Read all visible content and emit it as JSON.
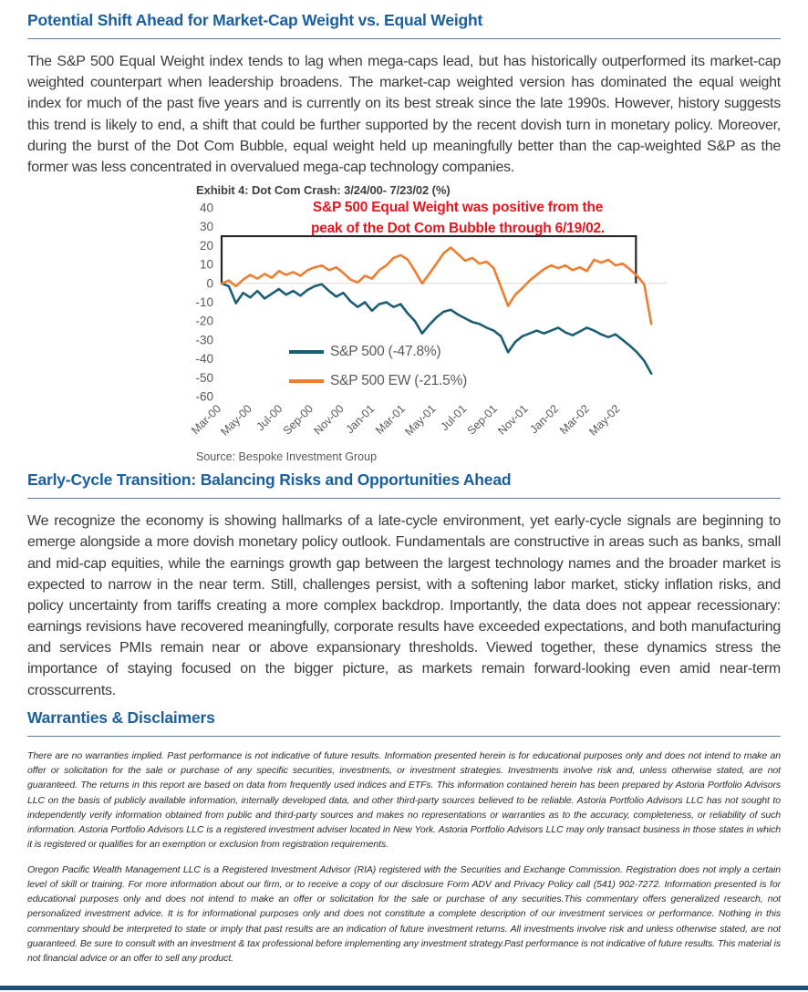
{
  "colors": {
    "heading": "#1a5fa0",
    "red": "#e8141e",
    "bar": "#1f4e79",
    "sp500_line": "#1b5e74",
    "sp500ew_line": "#ed7d31"
  },
  "document": {
    "section1": {
      "title": "Potential Shift Ahead for Market-Cap Weight vs. Equal Weight",
      "body": "The S&P 500 Equal Weight index tends to lag when mega-caps lead, but has historically outperformed its market-cap weighted counterpart when leadership broadens. The market-cap weighted version has dominated the equal weight index for much of the past five years and is currently on its best streak since the late 1990s. However, history suggests this trend is likely to end, a shift that could be further supported by the recent dovish turn in monetary policy. Moreover, during the burst of the Dot Com Bubble, equal weight held up meaningfully better than the cap-weighted S&P as the former was less concentrated in overvalued mega-cap technology companies."
    },
    "section2": {
      "title": "Early-Cycle Transition: Balancing Risks and Opportunities Ahead",
      "body": "We recognize the economy is showing hallmarks of a late-cycle environment, yet early-cycle signals are beginning to emerge alongside a more dovish monetary policy outlook. Fundamentals are constructive in areas such as banks, small and mid-cap equities, while the earnings growth gap between the largest technology names and the broader market is expected to narrow in the near term. Still, challenges persist, with a softening labor market, sticky inflation risks, and policy uncertainty from tariffs creating a more complex backdrop. Importantly, the data does not appear recessionary: earnings revisions have recovered meaningfully, corporate results have exceeded expectations, and both manufacturing and services PMIs remain near or above expansionary thresholds. Viewed together, these dynamics stress the importance of staying focused on the bigger picture, as markets remain forward-looking even amid near-term crosscurrents."
    },
    "disclaimers": {
      "title": "Warranties & Disclaimers",
      "para1": "There are no warranties implied. Past performance is not indicative of future results. Information presented herein is for educational purposes only and does not intend to make an offer or solicitation for the sale or purchase of any specific securities, investments, or investment strategies. Investments involve risk and, unless otherwise stated, are not guaranteed. The returns in this report are based on data from frequently used indices and ETFs. This information contained herein has been prepared by Astoria Portfolio Advisors LLC on the basis of publicly available information, internally developed data, and other third-party sources believed to be reliable. Astoria Portfolio Advisors LLC has not sought to independently verify information obtained from public and third-party sources and makes no representations or warranties as to the accuracy, completeness, or reliability of such information.  Astoria Portfolio Advisors LLC is a registered investment adviser located in New York. Astoria Portfolio Advisors LLC may only transact business in those states in which it is registered or qualifies for an exemption or exclusion from registration requirements.",
      "para2": "Oregon Pacific Wealth Management LLC is a Registered Investment Advisor (RIA) registered with the Securities and Exchange Commission. Registration does not imply a certain level of skill or training. For more information about our firm, or to receive a copy of our disclosure Form ADV and Privacy Policy call (541) 902-7272. Information presented is for educational purposes only and does not intend to make an offer or solicitation for the sale or purchase of any securities.This commentary offers generalized research, not personalized investment advice. It is for informational purposes only and does not constitute a complete description of our investment services or performance. Nothing in this commentary should be interpreted to state or imply that past results are an indication of future investment returns. All investments involve risk and unless otherwise stated, are not guaranteed. Be sure to consult with an investment & tax professional before implementing any investment strategy.Past performance is not indicative of future results. This material is not financial advice or an offer to sell any product."
    }
  },
  "chart_data": {
    "type": "line",
    "title": "Exhibit 4: Dot Com Crash: 3/24/00- 7/23/02 (%)",
    "annotation_lines": [
      "S&P 500 Equal Weight was positive from the",
      "peak of the Dot Com Bubble through 6/19/02."
    ],
    "source": "Source: Bespoke Investment Group",
    "ylabel": "%",
    "ylim": [
      -60,
      40
    ],
    "y_ticks": [
      40,
      30,
      20,
      10,
      0,
      -10,
      -20,
      -30,
      -40,
      -50,
      -60
    ],
    "x_unit": "months since 3/24/00",
    "xlim": [
      0,
      29
    ],
    "x_ticks": [
      "Mar-00",
      "May-00",
      "Jul-00",
      "Sep-00",
      "Nov-00",
      "Jan-01",
      "Mar-01",
      "May-01",
      "Jul-01",
      "Sep-01",
      "Nov-01",
      "Jan-02",
      "Mar-02",
      "May-02"
    ],
    "x_tick_positions": [
      0,
      2,
      4,
      6,
      8,
      10,
      12,
      14,
      16,
      18,
      20,
      22,
      24,
      26
    ],
    "x_step": 0.4667,
    "grid": "zero-line-only",
    "legend_position": "inside-lower-left",
    "box_annotation": {
      "x0": 0,
      "x1": 27,
      "y0": 0,
      "y1": 25,
      "note": "black outline box from peak of bubble to 6/19/02"
    },
    "series": [
      {
        "name": "S&P 500 (-47.8%)",
        "color": "#1b5e74",
        "final_return_pct": -47.8,
        "values": [
          0,
          -1.5,
          -10.5,
          -5,
          -7.5,
          -4,
          -8,
          -5.5,
          -3,
          -6,
          -4,
          -6.5,
          -3.5,
          -1.5,
          -0.5,
          -4,
          -7,
          -5,
          -9.5,
          -12.5,
          -10,
          -14.5,
          -11,
          -10,
          -12.5,
          -11,
          -16,
          -20,
          -26.5,
          -22,
          -18,
          -15,
          -14,
          -16.5,
          -18.5,
          -20.5,
          -21.5,
          -23.5,
          -25,
          -28,
          -36.5,
          -31,
          -28,
          -26.5,
          -25,
          -26.5,
          -25,
          -23.5,
          -26,
          -27.5,
          -25.5,
          -23.5,
          -25,
          -27,
          -28.5,
          -27,
          -30,
          -33,
          -36.5,
          -41,
          -47.8
        ]
      },
      {
        "name": "S&P 500 EW (-21.5%)",
        "color": "#ed7d31",
        "final_return_pct": -21.5,
        "values": [
          0,
          1.5,
          -1.5,
          2,
          4.5,
          2.5,
          5,
          3,
          6.5,
          4.5,
          6,
          4,
          7,
          8.5,
          9.5,
          7,
          8.5,
          5.5,
          2,
          0.5,
          4,
          2.5,
          7,
          9.5,
          13.5,
          15,
          12.5,
          6.5,
          0,
          5,
          10.5,
          16,
          19,
          15.5,
          12,
          13.5,
          10.5,
          11.5,
          8,
          -2,
          -12,
          -6,
          -2.5,
          1.5,
          4.5,
          7.5,
          9.5,
          8,
          9.5,
          7,
          8.5,
          6.5,
          12.5,
          11,
          12.5,
          9.5,
          10.5,
          7.5,
          4,
          -0.5,
          -21.5
        ]
      }
    ]
  }
}
